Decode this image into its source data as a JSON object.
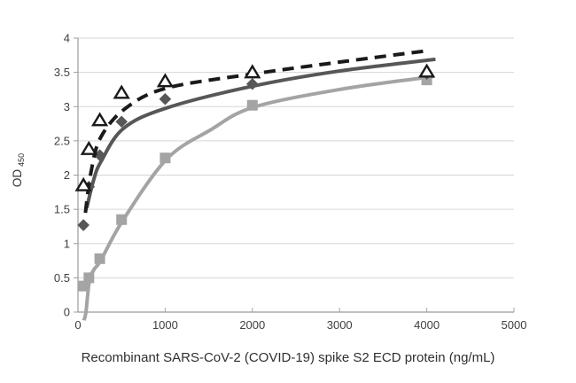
{
  "chart_data": {
    "type": "scatter",
    "title": "",
    "xlabel": "Recombinant SARS-CoV-2 (COVID-19) spike S2 ECD protein (ng/mL)",
    "ylabel": "OD",
    "ylabel_subscript": "450",
    "xlim": [
      0,
      5000
    ],
    "ylim": [
      0,
      4
    ],
    "xticks": [
      0,
      1000,
      2000,
      3000,
      4000,
      5000
    ],
    "yticks": [
      0,
      0.5,
      1,
      1.5,
      2,
      2.5,
      3,
      3.5,
      4
    ],
    "grid": "horizontal-only",
    "legend_position": "none",
    "x": [
      62.5,
      125,
      250,
      500,
      1000,
      2000,
      4000
    ],
    "series": [
      {
        "name": "light-gray-squares",
        "marker": "filled-square",
        "line_style": "solid",
        "color": "#a4a4a4",
        "values": [
          0.38,
          0.5,
          0.78,
          1.35,
          2.25,
          3.02,
          3.39
        ],
        "trend": [
          [
            68,
            -0.12
          ],
          [
            91,
            0.0
          ],
          [
            130,
            0.45
          ],
          [
            183,
            0.62
          ],
          [
            264,
            0.76
          ],
          [
            510,
            1.33
          ],
          [
            1015,
            2.23
          ],
          [
            1520,
            2.66
          ],
          [
            2010,
            2.99
          ],
          [
            3000,
            3.25
          ],
          [
            4080,
            3.44
          ]
        ]
      },
      {
        "name": "dark-gray-diamonds",
        "marker": "filled-diamond",
        "line_style": "solid",
        "color": "#575757",
        "values": [
          1.27,
          1.83,
          2.29,
          2.78,
          3.11,
          3.33,
          3.48
        ],
        "trend": [
          [
            100,
            1.52
          ],
          [
            180,
            1.93
          ],
          [
            265,
            2.2
          ],
          [
            520,
            2.68
          ],
          [
            1015,
            2.98
          ],
          [
            2010,
            3.3
          ],
          [
            3000,
            3.52
          ],
          [
            4100,
            3.69
          ]
        ]
      },
      {
        "name": "open-triangles-dashed",
        "marker": "open-triangle",
        "line_style": "dashed",
        "color": "#1a1a1a",
        "values": [
          1.85,
          2.38,
          2.8,
          3.2,
          3.37,
          3.5,
          3.51
        ],
        "trend": [
          [
            85,
            1.45
          ],
          [
            150,
            2.05
          ],
          [
            260,
            2.55
          ],
          [
            540,
            2.97
          ],
          [
            1015,
            3.27
          ],
          [
            2020,
            3.48
          ],
          [
            3000,
            3.65
          ],
          [
            3970,
            3.81
          ]
        ]
      }
    ],
    "colors": {
      "gridline": "#d6d6d6",
      "axis": "#9b9b9b",
      "tick": "#a8a8a8",
      "tick_text": "#404040",
      "title_text": "#303030",
      "triangle_fill": "#ffffff"
    }
  }
}
